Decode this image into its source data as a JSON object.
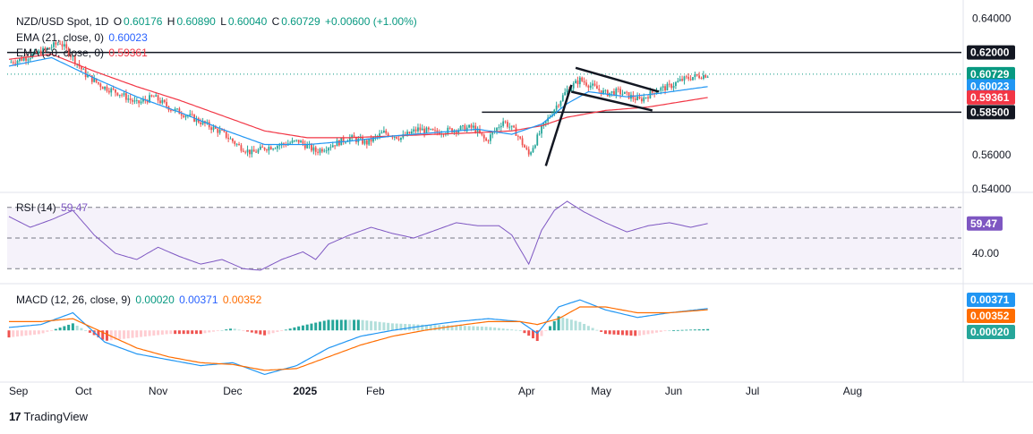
{
  "header": {
    "symbol": "NZD/USD Spot, 1D",
    "open_label": "O",
    "open": "0.60176",
    "high_label": "H",
    "high": "0.60890",
    "low_label": "L",
    "low": "0.60040",
    "close_label": "C",
    "close": "0.60729",
    "change": "+0.00600 (+1.00%)"
  },
  "ema21_legend": {
    "label": "EMA (21, close, 0)",
    "value": "0.60023"
  },
  "ema50_legend": {
    "label": "EMA (50, close, 0)",
    "value": "0.59361"
  },
  "rsi_legend": {
    "label": "RSI (14)",
    "value": "59.47"
  },
  "macd_legend": {
    "label": "MACD (12, 26, close, 9)",
    "histogram": "0.00020",
    "macd": "0.00371",
    "signal": "0.00352"
  },
  "footer": {
    "brand": "TradingView"
  },
  "colors": {
    "up": "#26a69a",
    "down": "#ef5350",
    "ema21": "#2196f3",
    "ema50": "#f23645",
    "rsi": "#7e57c2",
    "macd": "#2196f3",
    "signal": "#ff6d00",
    "hist_up": "#26a69a",
    "hist_down": "#ef5350",
    "close_line": "#089981"
  },
  "chart_data": [
    {
      "type": "candlestick",
      "title": "NZD/USD Spot, 1D",
      "x_tick_labels": [
        "Sep",
        "Oct",
        "Nov",
        "Dec",
        "2025",
        "Feb",
        "Apr",
        "May",
        "Jun",
        "Jul",
        "Aug"
      ],
      "y_tick_labels": [
        "0.64000",
        "0.56000",
        "0.54000"
      ],
      "ylim": [
        0.5395,
        0.6445
      ],
      "price_tags": [
        {
          "value": 0.62,
          "text": "0.62000",
          "color": "#131722"
        },
        {
          "value": 0.60729,
          "text": "0.60729",
          "color": "#089981"
        },
        {
          "value": 0.60023,
          "text": "0.60023",
          "color": "#2196f3"
        },
        {
          "value": 0.59361,
          "text": "0.59361",
          "color": "#f23645"
        },
        {
          "value": 0.585,
          "text": "0.58500",
          "color": "#131722"
        }
      ],
      "horizontal_levels": [
        0.62,
        0.585
      ],
      "series_points": {
        "close": [
          [
            0,
            0.614
          ],
          [
            8,
            0.617
          ],
          [
            16,
            0.621
          ],
          [
            24,
            0.626
          ],
          [
            30,
            0.617
          ],
          [
            36,
            0.607
          ],
          [
            44,
            0.6
          ],
          [
            52,
            0.596
          ],
          [
            60,
            0.59
          ],
          [
            68,
            0.594
          ],
          [
            76,
            0.587
          ],
          [
            84,
            0.583
          ],
          [
            92,
            0.578
          ],
          [
            100,
            0.573
          ],
          [
            108,
            0.565
          ],
          [
            114,
            0.561
          ],
          [
            120,
            0.564
          ],
          [
            128,
            0.566
          ],
          [
            136,
            0.568
          ],
          [
            144,
            0.562
          ],
          [
            152,
            0.566
          ],
          [
            160,
            0.57
          ],
          [
            168,
            0.567
          ],
          [
            176,
            0.573
          ],
          [
            184,
            0.57
          ],
          [
            192,
            0.575
          ],
          [
            200,
            0.573
          ],
          [
            210,
            0.575
          ],
          [
            218,
            0.576
          ],
          [
            224,
            0.568
          ],
          [
            232,
            0.58
          ],
          [
            238,
            0.573
          ],
          [
            244,
            0.56
          ],
          [
            250,
            0.575
          ],
          [
            256,
            0.587
          ],
          [
            262,
            0.598
          ],
          [
            268,
            0.604
          ],
          [
            274,
            0.6
          ],
          [
            280,
            0.596
          ],
          [
            286,
            0.597
          ],
          [
            292,
            0.594
          ],
          [
            296,
            0.592
          ],
          [
            304,
            0.598
          ],
          [
            310,
            0.6
          ],
          [
            316,
            0.604
          ],
          [
            322,
            0.606
          ],
          [
            328,
            0.607
          ]
        ],
        "ema21": [
          [
            0,
            0.612
          ],
          [
            20,
            0.617
          ],
          [
            40,
            0.605
          ],
          [
            60,
            0.594
          ],
          [
            80,
            0.585
          ],
          [
            100,
            0.575
          ],
          [
            120,
            0.566
          ],
          [
            140,
            0.566
          ],
          [
            160,
            0.568
          ],
          [
            180,
            0.571
          ],
          [
            200,
            0.573
          ],
          [
            220,
            0.575
          ],
          [
            236,
            0.572
          ],
          [
            250,
            0.578
          ],
          [
            262,
            0.59
          ],
          [
            272,
            0.597
          ],
          [
            290,
            0.594
          ],
          [
            305,
            0.596
          ],
          [
            328,
            0.6
          ]
        ],
        "ema50": [
          [
            0,
            0.616
          ],
          [
            20,
            0.619
          ],
          [
            40,
            0.609
          ],
          [
            60,
            0.6
          ],
          [
            80,
            0.592
          ],
          [
            100,
            0.583
          ],
          [
            120,
            0.574
          ],
          [
            140,
            0.57
          ],
          [
            160,
            0.57
          ],
          [
            180,
            0.571
          ],
          [
            200,
            0.572
          ],
          [
            220,
            0.573
          ],
          [
            236,
            0.574
          ],
          [
            250,
            0.577
          ],
          [
            262,
            0.582
          ],
          [
            280,
            0.586
          ],
          [
            300,
            0.588
          ],
          [
            328,
            0.5936
          ]
        ]
      }
    },
    {
      "type": "line",
      "title": "RSI (14)",
      "y_tick_labels": [
        "59.47",
        "40.00"
      ],
      "bands": [
        70,
        50,
        30
      ],
      "ylim": [
        22,
        78
      ],
      "series": [
        {
          "name": "RSI (14)",
          "points": [
            [
              0,
              64
            ],
            [
              10,
              57
            ],
            [
              20,
              62
            ],
            [
              30,
              68
            ],
            [
              40,
              52
            ],
            [
              50,
              40
            ],
            [
              60,
              36
            ],
            [
              70,
              44
            ],
            [
              80,
              38
            ],
            [
              90,
              33
            ],
            [
              100,
              36
            ],
            [
              110,
              30
            ],
            [
              118,
              29
            ],
            [
              128,
              36
            ],
            [
              138,
              41
            ],
            [
              144,
              36
            ],
            [
              150,
              46
            ],
            [
              160,
              52
            ],
            [
              170,
              57
            ],
            [
              180,
              53
            ],
            [
              190,
              50
            ],
            [
              200,
              55
            ],
            [
              210,
              60
            ],
            [
              220,
              58
            ],
            [
              230,
              58
            ],
            [
              236,
              52
            ],
            [
              244,
              33
            ],
            [
              250,
              55
            ],
            [
              256,
              68
            ],
            [
              262,
              74
            ],
            [
              270,
              67
            ],
            [
              280,
              60
            ],
            [
              290,
              54
            ],
            [
              300,
              58
            ],
            [
              310,
              60
            ],
            [
              320,
              57
            ],
            [
              328,
              59.47
            ]
          ]
        }
      ]
    },
    {
      "type": "line",
      "title": "MACD (12, 26, close, 9)",
      "y_tick_labels": [
        "0.00371",
        "0.00352",
        "0.00020"
      ],
      "ylim": [
        -0.0085,
        0.0075
      ],
      "series": [
        {
          "name": "MACD",
          "points": [
            [
              0,
              0.0005
            ],
            [
              15,
              0.001
            ],
            [
              30,
              0.003
            ],
            [
              45,
              -0.002
            ],
            [
              60,
              -0.004
            ],
            [
              75,
              -0.005
            ],
            [
              90,
              -0.006
            ],
            [
              105,
              -0.0055
            ],
            [
              120,
              -0.0075
            ],
            [
              135,
              -0.006
            ],
            [
              150,
              -0.003
            ],
            [
              165,
              -0.001
            ],
            [
              180,
              0.0
            ],
            [
              195,
              0.0008
            ],
            [
              210,
              0.0015
            ],
            [
              225,
              0.002
            ],
            [
              240,
              0.0015
            ],
            [
              248,
              -0.0005
            ],
            [
              258,
              0.004
            ],
            [
              268,
              0.0052
            ],
            [
              280,
              0.0035
            ],
            [
              295,
              0.0022
            ],
            [
              310,
              0.003
            ],
            [
              328,
              0.00371
            ]
          ]
        },
        {
          "name": "Signal",
          "points": [
            [
              0,
              0.0015
            ],
            [
              15,
              0.0015
            ],
            [
              30,
              0.002
            ],
            [
              45,
              -0.0005
            ],
            [
              60,
              -0.003
            ],
            [
              75,
              -0.0045
            ],
            [
              90,
              -0.0055
            ],
            [
              105,
              -0.0058
            ],
            [
              120,
              -0.0068
            ],
            [
              135,
              -0.0065
            ],
            [
              150,
              -0.0045
            ],
            [
              165,
              -0.0025
            ],
            [
              180,
              -0.001
            ],
            [
              195,
              0.0
            ],
            [
              210,
              0.0008
            ],
            [
              225,
              0.0015
            ],
            [
              240,
              0.0015
            ],
            [
              248,
              0.001
            ],
            [
              258,
              0.002
            ],
            [
              268,
              0.004
            ],
            [
              280,
              0.004
            ],
            [
              295,
              0.003
            ],
            [
              310,
              0.003
            ],
            [
              328,
              0.00352
            ]
          ]
        }
      ]
    }
  ]
}
